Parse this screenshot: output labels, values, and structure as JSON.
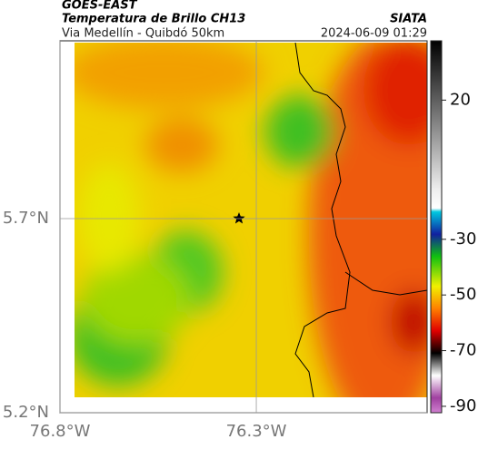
{
  "header": {
    "title": "GOES-EAST",
    "subtitle": "Temperatura de Brillo CH13",
    "source": "SIATA",
    "route": "Via Medellín - Quibdó 50km",
    "datetime": "2024-06-09 01:29"
  },
  "map": {
    "xlim": [
      -76.8,
      -75.865
    ],
    "ylim": [
      5.2,
      6.158
    ],
    "xticks": [
      {
        "value": -76.8,
        "label": "76.8°W"
      },
      {
        "value": -76.3,
        "label": "76.3°W"
      }
    ],
    "yticks": [
      {
        "value": 5.7,
        "label": "5.7°N"
      },
      {
        "value": 5.2,
        "label": "5.2°N"
      }
    ]
  },
  "colorbar": {
    "lim": [
      -92.3,
      41.3
    ],
    "ticks": [
      20,
      -30,
      -50,
      -70,
      -90
    ]
  }
}
